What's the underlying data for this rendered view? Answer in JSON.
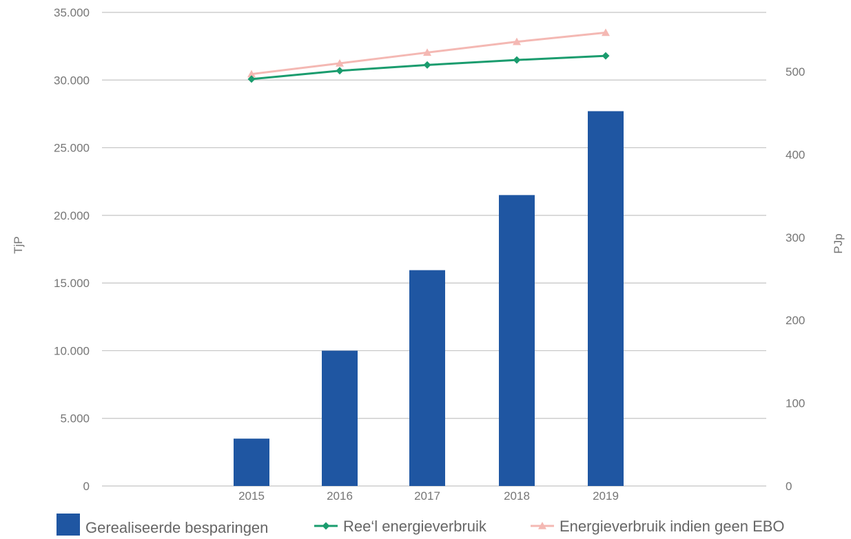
{
  "chart_data": {
    "type": "bar",
    "categories": [
      "2015",
      "2016",
      "2017",
      "2018",
      "2019"
    ],
    "series": [
      {
        "name": "Gerealiseerde besparingen",
        "kind": "bar",
        "axis": "left",
        "color": "#1f56a2",
        "values": [
          3500,
          10000,
          15950,
          21500,
          27700
        ]
      },
      {
        "name": "Ree‘l energieverbruik",
        "kind": "line",
        "axis": "right",
        "marker": "diamond",
        "color": "#1a9c6e",
        "values": [
          491,
          501,
          508,
          514,
          519
        ]
      },
      {
        "name": "Energieverbruik indien geen EBO",
        "kind": "line",
        "axis": "right",
        "marker": "triangle",
        "color": "#f4b8b3",
        "values": [
          497,
          510,
          523,
          536,
          547
        ]
      }
    ],
    "left_axis": {
      "label": "TjP",
      "min": 0,
      "max": 35000,
      "step": 5000,
      "tick_labels": [
        "0",
        "5.000",
        "10.000",
        "15.000",
        "20.000",
        "25.000",
        "30.000",
        "35.000"
      ]
    },
    "right_axis": {
      "label": "PJp",
      "min": 0,
      "max": 500,
      "step": 100,
      "tick_labels": [
        "0",
        "100",
        "200",
        "300",
        "400",
        "500"
      ]
    },
    "grid": true,
    "legend_position": "bottom",
    "colors": {
      "grid": "#c4c4c4",
      "axis_text": "#767676",
      "legend_text": "#666666"
    }
  }
}
